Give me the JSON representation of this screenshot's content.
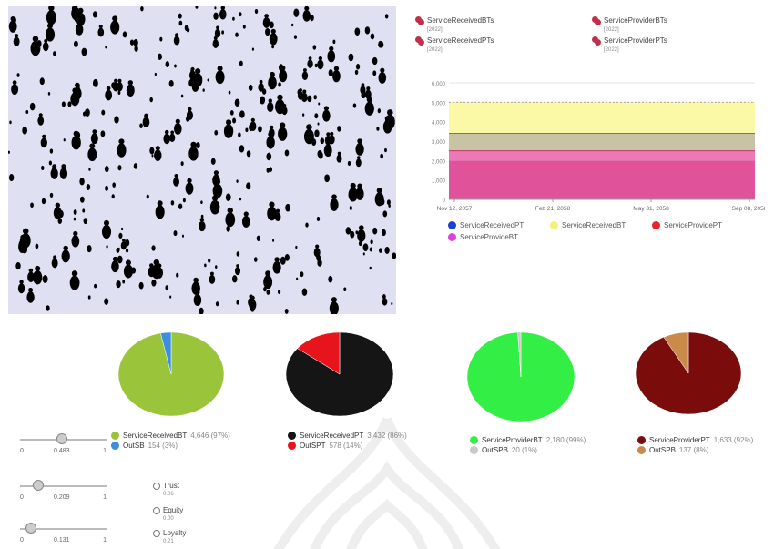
{
  "top_legend": [
    {
      "label": "ServiceReceivedBTs",
      "sub": "[2022]"
    },
    {
      "label": "ServiceProviderBTs",
      "sub": "[2022]"
    },
    {
      "label": "ServiceReceivedPTs",
      "sub": "[2022]"
    },
    {
      "label": "ServiceProviderPTs",
      "sub": "[2022]"
    }
  ],
  "chart_data": [
    {
      "type": "area",
      "y_ticks": [
        "0",
        "1,000",
        "2,000",
        "3,000",
        "4,000",
        "5,000",
        "6,000"
      ],
      "x_ticks": [
        "Nov 12, 2057",
        "Feb 21, 2058",
        "May 31, 2058",
        "Sep 08, 2058"
      ],
      "ylim": [
        0,
        6000
      ],
      "grid": true,
      "legend_position": "bottom",
      "series": [
        {
          "name": "ServiceReceivedPT",
          "color": "#1f3fd0",
          "values": [
            3400,
            3400
          ]
        },
        {
          "name": "ServiceReceivedBT",
          "color": "#f5f07a",
          "values": [
            5000,
            5000
          ]
        },
        {
          "name": "ServiceProvidePT",
          "color": "#e8232e",
          "values": [
            2500,
            2500
          ]
        },
        {
          "name": "ServiceProvideBT",
          "color": "#e040d8",
          "values": [
            2000,
            2000
          ]
        }
      ]
    },
    {
      "type": "pie",
      "slices": [
        {
          "name": "ServiceReceivedBT",
          "value": 4646,
          "pct": "97%",
          "color": "#9ac53a"
        },
        {
          "name": "OutSB",
          "value": 154,
          "pct": "3%",
          "color": "#3d8fdc"
        }
      ]
    },
    {
      "type": "pie",
      "slices": [
        {
          "name": "ServiceReceivedPT",
          "value": 3432,
          "pct": "86%",
          "color": "#151515"
        },
        {
          "name": "OutSPT",
          "value": 578,
          "pct": "14%",
          "color": "#e8141c"
        }
      ]
    },
    {
      "type": "pie",
      "slices": [
        {
          "name": "ServiceProviderBT",
          "value": 2180,
          "pct": "99%",
          "color": "#33ee44"
        },
        {
          "name": "OutSPB",
          "value": 20,
          "pct": "1%",
          "color": "#c8c8c8"
        }
      ]
    },
    {
      "type": "pie",
      "slices": [
        {
          "name": "ServiceProviderPT",
          "value": 1633,
          "pct": "92%",
          "color": "#7a0c0c"
        },
        {
          "name": "OutSPB",
          "value": 137,
          "pct": "8%",
          "color": "#c98a4a"
        }
      ]
    }
  ],
  "pie_legends": [
    {
      "rows": [
        {
          "name": "ServiceReceivedBT",
          "value": "4,646 (97%)",
          "color": "#9ac53a"
        },
        {
          "name": "OutSB",
          "value": "154 (3%)",
          "color": "#3d8fdc"
        }
      ]
    },
    {
      "rows": [
        {
          "name": "ServiceReceivedPT",
          "value": "3,432 (86%)",
          "color": "#151515"
        },
        {
          "name": "OutSPT",
          "value": "578 (14%)",
          "color": "#e8141c"
        }
      ]
    },
    {
      "rows": [
        {
          "name": "ServiceProviderBT",
          "value": "2,180 (99%)",
          "color": "#33ee44"
        },
        {
          "name": "OutSPB",
          "value": "20 (1%)",
          "color": "#c8c8c8"
        }
      ]
    },
    {
      "rows": [
        {
          "name": "ServiceProviderPT",
          "value": "1,633 (92%)",
          "color": "#7a0c0c"
        },
        {
          "name": "OutSPB",
          "value": "137 (8%)",
          "color": "#c98a4a"
        }
      ]
    }
  ],
  "sliders": [
    {
      "min": "0",
      "max": "1",
      "value": "0.483",
      "fraction": 0.483
    },
    {
      "min": "0",
      "max": "1",
      "value": "0.209",
      "fraction": 0.209
    },
    {
      "min": "0",
      "max": "1",
      "value": "0.131",
      "fraction": 0.131
    }
  ],
  "radios": [
    {
      "label": "Trust",
      "sub": "0.06"
    },
    {
      "label": "Equity",
      "sub": "0.00"
    },
    {
      "label": "Loyalty",
      "sub": "0.21"
    }
  ],
  "colors": {
    "sim_background": "#dfe0f2",
    "agent": "#000000",
    "legend_marker": "#c0304a"
  }
}
